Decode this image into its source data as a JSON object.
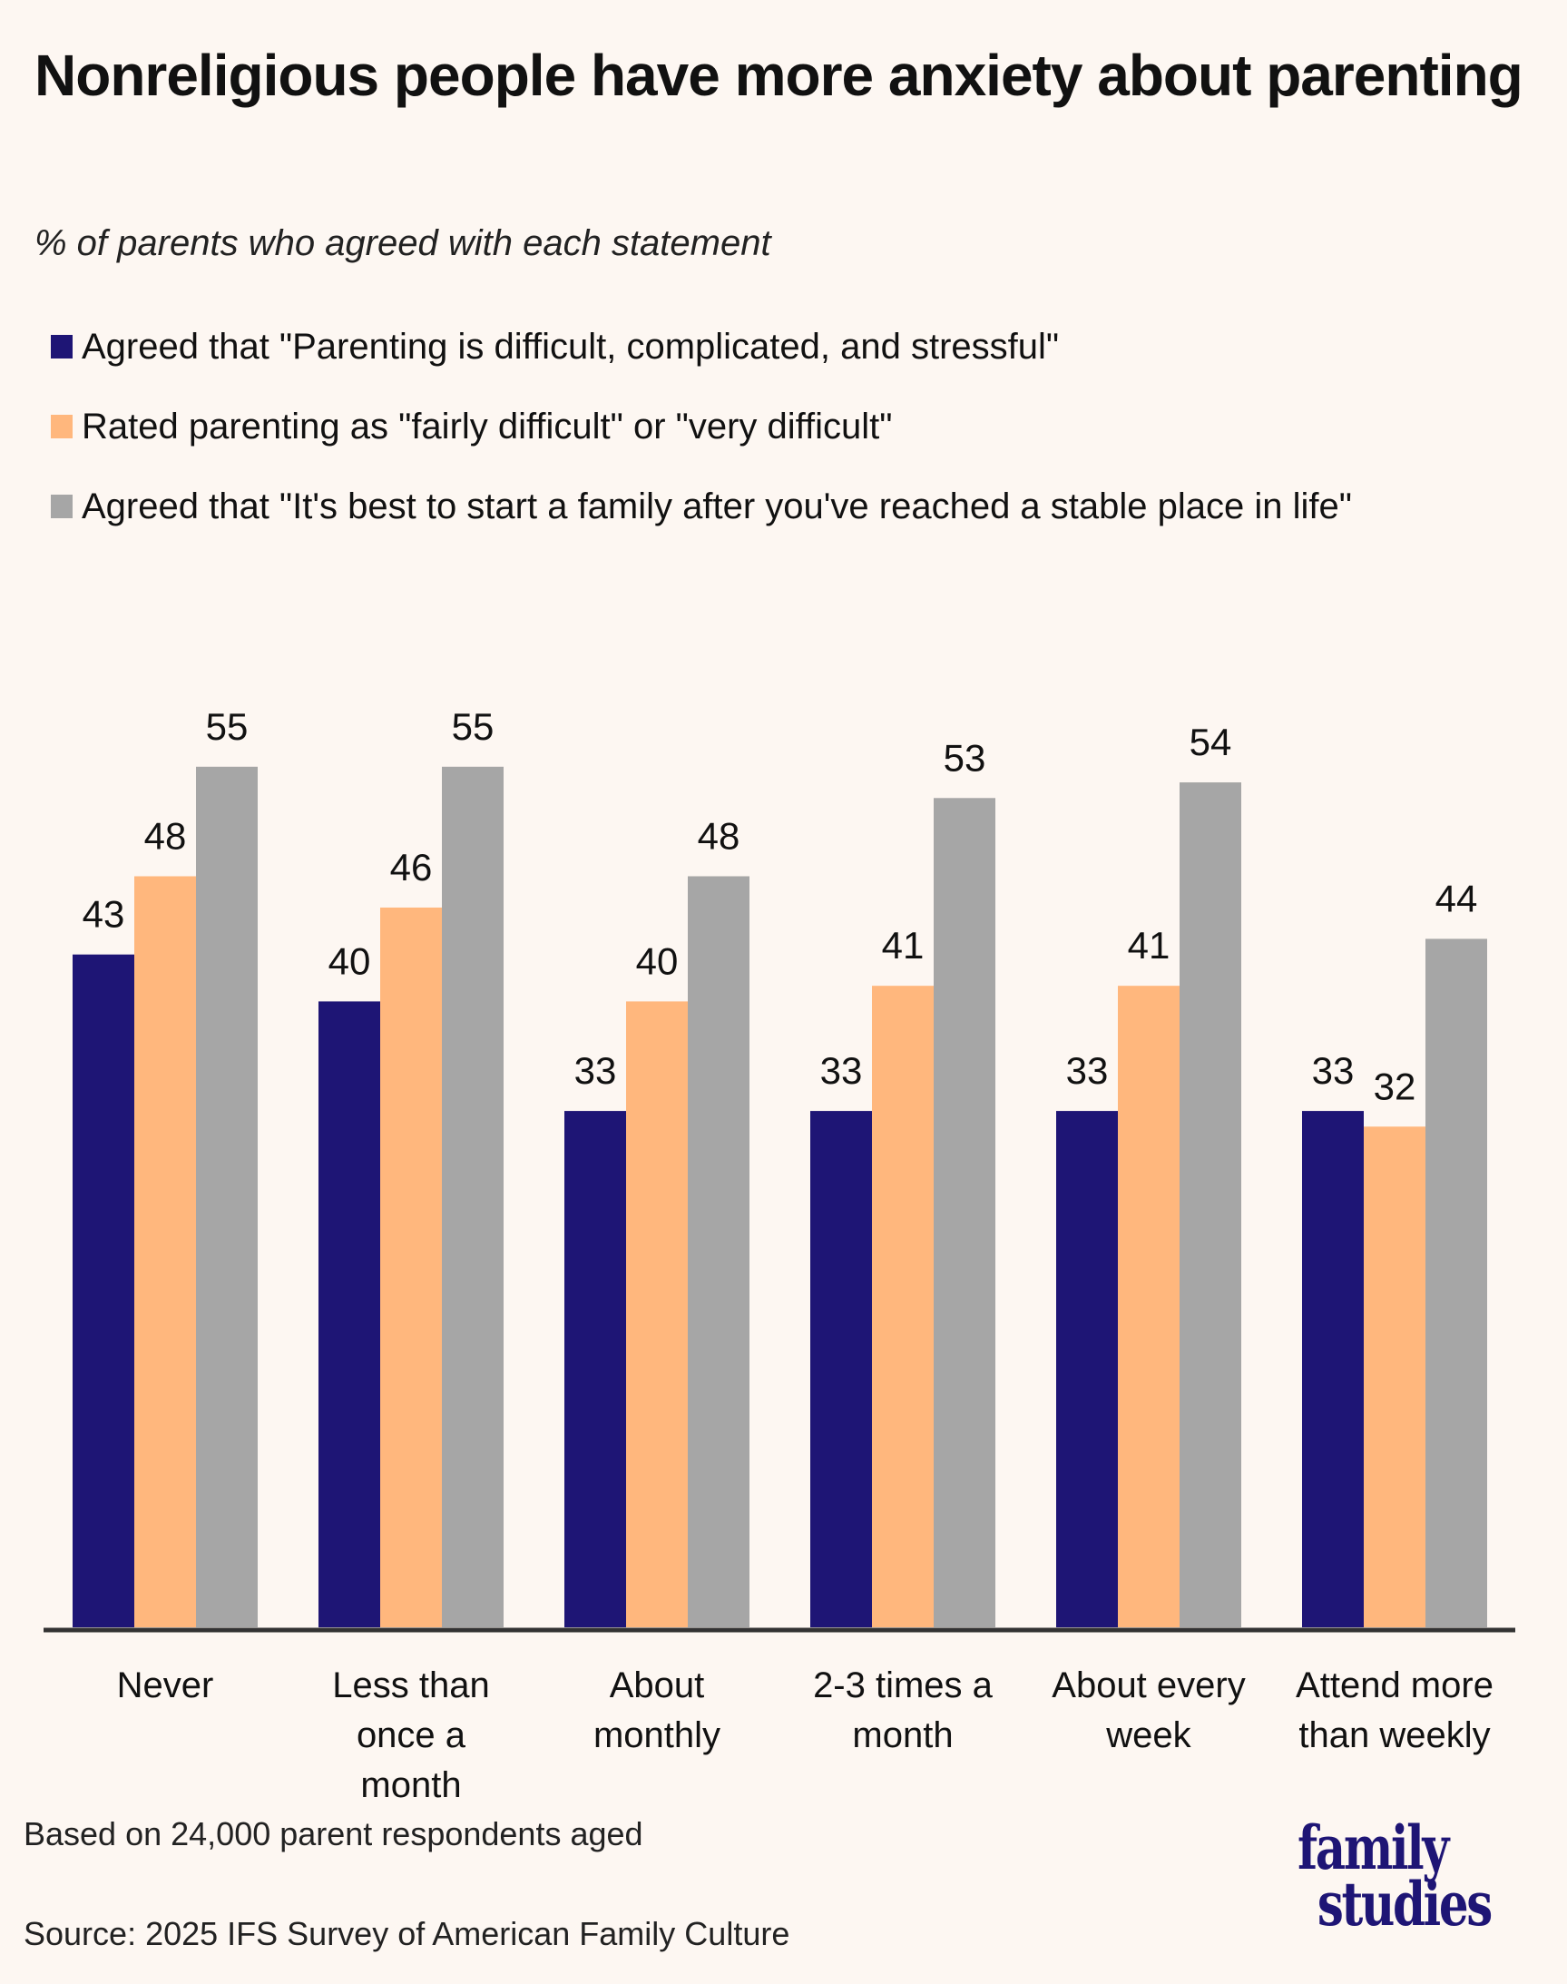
{
  "header": {
    "title": "Nonreligious people have more anxiety about parenting",
    "subtitle": "% of parents who agreed with each statement"
  },
  "legend": [
    {
      "label": "Agreed that \"Parenting is difficult, complicated, and stressful\"",
      "color": "#1e1575"
    },
    {
      "label": "Rated parenting as \"fairly difficult\" or \"very difficult\"",
      "color": "#ffb77d"
    },
    {
      "label": "Agreed that \"It's best to start a family after you've reached a stable place in life\"",
      "color": "#a6a6a6"
    }
  ],
  "footer": {
    "note": "Based on 24,000 parent respondents aged",
    "source": "Source: 2025 IFS Survey of American Family Culture",
    "logo_line1": "family",
    "logo_line2": "studies"
  },
  "chart_data": {
    "type": "bar",
    "title": "Nonreligious people have more anxiety about parenting",
    "subtitle": "% of parents who agreed with each statement",
    "xlabel": "",
    "ylabel": "",
    "ylim": [
      0,
      55
    ],
    "grid": false,
    "legend_position": "top-left",
    "categories": [
      [
        "Never"
      ],
      [
        "Less than",
        "once a",
        "month"
      ],
      [
        "About",
        "monthly"
      ],
      [
        "2-3 times a",
        "month"
      ],
      [
        "About every",
        "week"
      ],
      [
        "Attend more",
        "than weekly"
      ]
    ],
    "series": [
      {
        "name": "Agreed that \"Parenting is difficult, complicated, and stressful\"",
        "color": "#1e1575",
        "values": [
          43,
          40,
          33,
          33,
          33,
          33
        ]
      },
      {
        "name": "Rated parenting as \"fairly difficult\" or \"very difficult\"",
        "color": "#ffb77d",
        "values": [
          48,
          46,
          40,
          41,
          41,
          32
        ]
      },
      {
        "name": "Agreed that \"It's best to start a family after you've reached a stable place in life\"",
        "color": "#a6a6a6",
        "values": [
          55,
          55,
          48,
          53,
          54,
          44
        ]
      }
    ],
    "axis_color": "#333333"
  }
}
